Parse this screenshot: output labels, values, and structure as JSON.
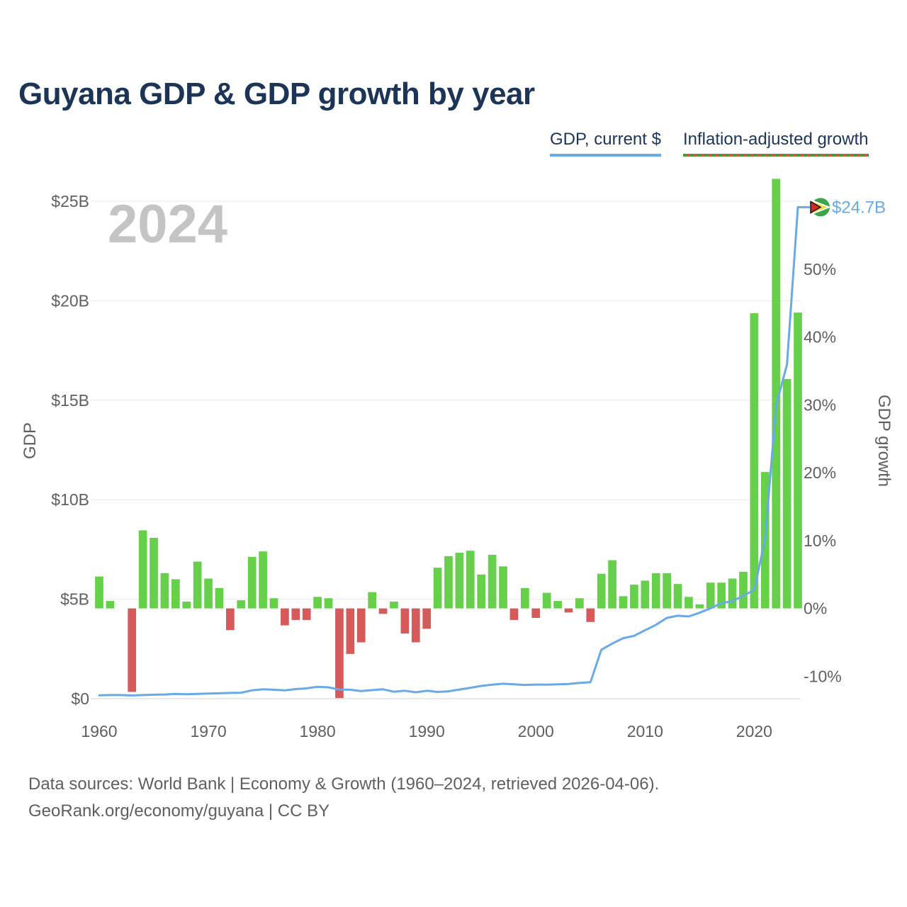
{
  "title": "Guyana GDP & GDP growth by year",
  "legend": {
    "gdp_label": "GDP, current $",
    "growth_label": "Inflation-adjusted growth"
  },
  "colors": {
    "gdp_line": "#6aaae4",
    "growth_positive": "#66d04a",
    "growth_negative": "#d65a5a",
    "title": "#1c3557",
    "year_watermark": "#c4c4c4"
  },
  "footer": {
    "sources": "Data sources: World Bank | Economy & Growth (1960–2024, retrieved 2026-04-06).",
    "credit": "GeoRank.org/economy/guyana | CC BY"
  },
  "chart_data": {
    "type": "bar+line",
    "current_year_label": "2024",
    "end_value_label": "$24.7B",
    "y_left": {
      "label": "GDP",
      "range": [
        0,
        25
      ],
      "ticks": [
        0,
        5,
        10,
        15,
        20,
        25
      ],
      "tick_labels": [
        "$0",
        "$5B",
        "$10B",
        "$15B",
        "$20B",
        "$25B"
      ]
    },
    "y_right": {
      "label": "GDP growth",
      "range": [
        -13.3,
        60
      ],
      "ticks": [
        -10,
        0,
        10,
        20,
        30,
        40,
        50
      ],
      "tick_labels": [
        "-10%",
        "0%",
        "10%",
        "20%",
        "30%",
        "40%",
        "50%"
      ]
    },
    "x": {
      "range": [
        1960,
        2024
      ],
      "ticks": [
        1960,
        1970,
        1980,
        1990,
        2000,
        2010,
        2020
      ],
      "tick_labels": [
        "1960",
        "1970",
        "1980",
        "1990",
        "2000",
        "2010",
        "2020"
      ]
    },
    "years": [
      1960,
      1961,
      1962,
      1963,
      1964,
      1965,
      1966,
      1967,
      1968,
      1969,
      1970,
      1971,
      1972,
      1973,
      1974,
      1975,
      1976,
      1977,
      1978,
      1979,
      1980,
      1981,
      1982,
      1983,
      1984,
      1985,
      1986,
      1987,
      1988,
      1989,
      1990,
      1991,
      1992,
      1993,
      1994,
      1995,
      1996,
      1997,
      1998,
      1999,
      2000,
      2001,
      2002,
      2003,
      2004,
      2005,
      2006,
      2007,
      2008,
      2009,
      2010,
      2011,
      2012,
      2013,
      2014,
      2015,
      2016,
      2017,
      2018,
      2019,
      2020,
      2021,
      2022,
      2023,
      2024
    ],
    "series": [
      {
        "name": "GDP, current $ (billions)",
        "type": "line",
        "values": [
          0.17,
          0.18,
          0.18,
          0.16,
          0.18,
          0.2,
          0.21,
          0.24,
          0.22,
          0.24,
          0.26,
          0.27,
          0.29,
          0.3,
          0.42,
          0.47,
          0.45,
          0.42,
          0.48,
          0.52,
          0.6,
          0.57,
          0.46,
          0.45,
          0.38,
          0.43,
          0.47,
          0.35,
          0.4,
          0.32,
          0.4,
          0.34,
          0.37,
          0.46,
          0.55,
          0.64,
          0.7,
          0.75,
          0.72,
          0.69,
          0.71,
          0.7,
          0.72,
          0.74,
          0.79,
          0.83,
          2.46,
          2.77,
          3.04,
          3.16,
          3.44,
          3.71,
          4.06,
          4.17,
          4.13,
          4.32,
          4.54,
          4.8,
          4.9,
          5.17,
          5.47,
          8.05,
          14.72,
          16.79,
          24.7
        ]
      },
      {
        "name": "Inflation-adjusted growth (%)",
        "type": "bar",
        "values": [
          4.7,
          1.1,
          null,
          -12.3,
          11.5,
          10.4,
          5.2,
          4.3,
          1.0,
          6.9,
          4.4,
          3.0,
          -3.2,
          1.2,
          7.6,
          8.4,
          1.5,
          -2.5,
          -1.7,
          -1.7,
          1.7,
          1.5,
          -13.2,
          -6.7,
          -5.0,
          2.4,
          -0.8,
          1.0,
          -3.7,
          -5.0,
          -3.0,
          6.0,
          7.7,
          8.2,
          8.5,
          5.0,
          7.9,
          6.2,
          -1.7,
          3.0,
          -1.4,
          2.3,
          1.1,
          -0.6,
          1.5,
          -2.0,
          5.1,
          7.1,
          1.8,
          3.5,
          4.1,
          5.2,
          5.2,
          3.6,
          1.7,
          0.6,
          3.8,
          3.8,
          4.4,
          5.4,
          43.5,
          20.1,
          63.3,
          33.8,
          43.6
        ]
      }
    ]
  }
}
